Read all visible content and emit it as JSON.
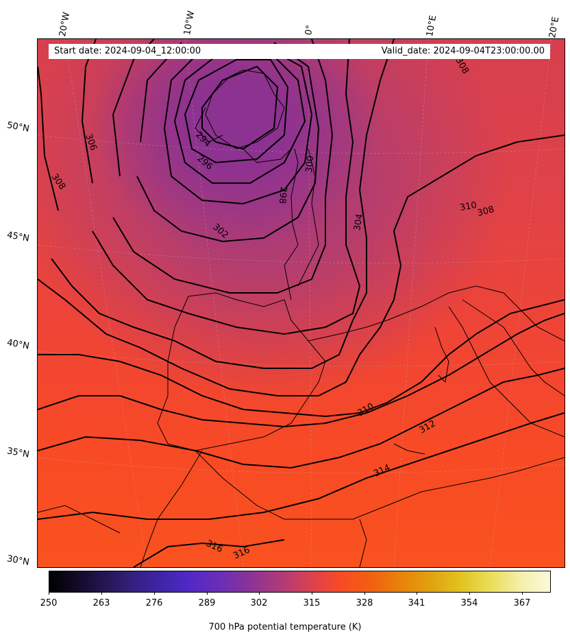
{
  "header": {
    "start_date": "Start date: 2024-09-04_12:00:00",
    "valid_date": "Valid_date: 2024-09-04T23:00:00.00"
  },
  "map": {
    "longitude_labels": [
      "20°W",
      "10°W",
      "0°",
      "10°E",
      "20°E"
    ],
    "latitude_labels": [
      "50°N",
      "45°N",
      "40°N",
      "35°N",
      "30°N"
    ],
    "contour_labels": [
      "294",
      "296",
      "298",
      "300",
      "302",
      "304",
      "306",
      "308",
      "308",
      "308",
      "310",
      "310",
      "312",
      "314",
      "316",
      "316"
    ],
    "field": "700 hPa potential temperature",
    "colormap": "CMRmap",
    "contour_color": "#000000"
  },
  "colorbar": {
    "title": "700 hPa potential temperature (K)",
    "ticks": [
      "250",
      "263",
      "276",
      "289",
      "302",
      "315",
      "328",
      "341",
      "354",
      "367"
    ],
    "range": [
      250,
      374
    ]
  }
}
